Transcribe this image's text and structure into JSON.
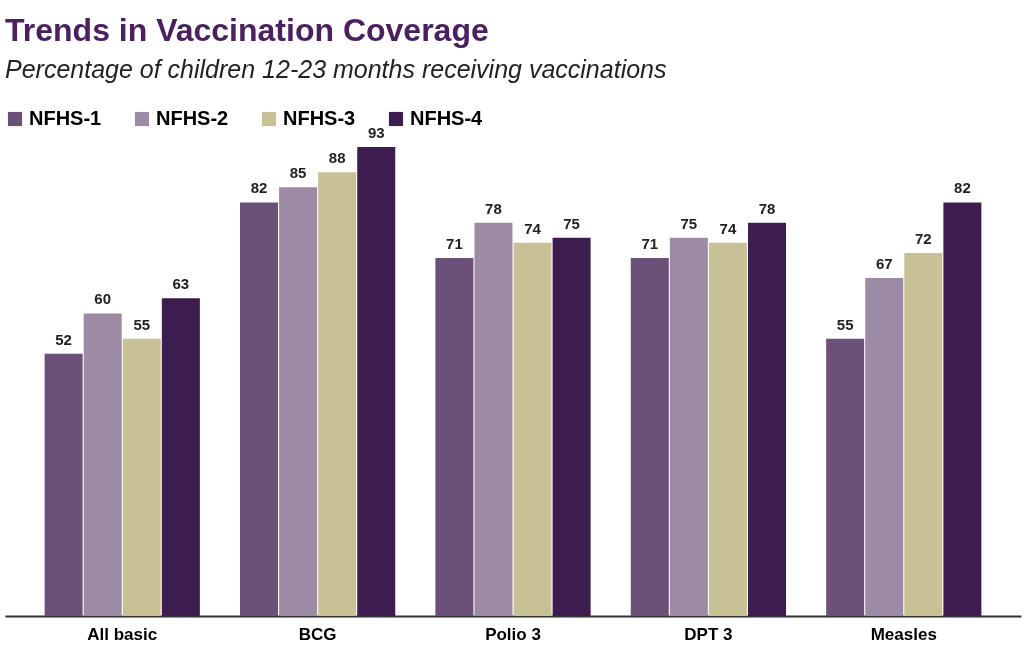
{
  "chart_data": {
    "type": "bar",
    "title": "Trends in Vaccination Coverage",
    "subtitle": "Percentage of children 12-23 months receiving vaccinations",
    "categories": [
      "All basic",
      "BCG",
      "Polio 3",
      "DPT 3",
      "Measles"
    ],
    "series": [
      {
        "name": "NFHS-1",
        "color": "#6b5078",
        "values": [
          52,
          82,
          71,
          71,
          55
        ]
      },
      {
        "name": "NFHS-2",
        "color": "#9d8aa5",
        "values": [
          60,
          85,
          78,
          75,
          67
        ]
      },
      {
        "name": "NFHS-3",
        "color": "#c8c196",
        "values": [
          55,
          88,
          74,
          74,
          72
        ]
      },
      {
        "name": "NFHS-4",
        "color": "#3d1c4f",
        "values": [
          63,
          93,
          75,
          78,
          82
        ]
      }
    ],
    "data_labels": true,
    "legend": "top",
    "grid": false
  }
}
